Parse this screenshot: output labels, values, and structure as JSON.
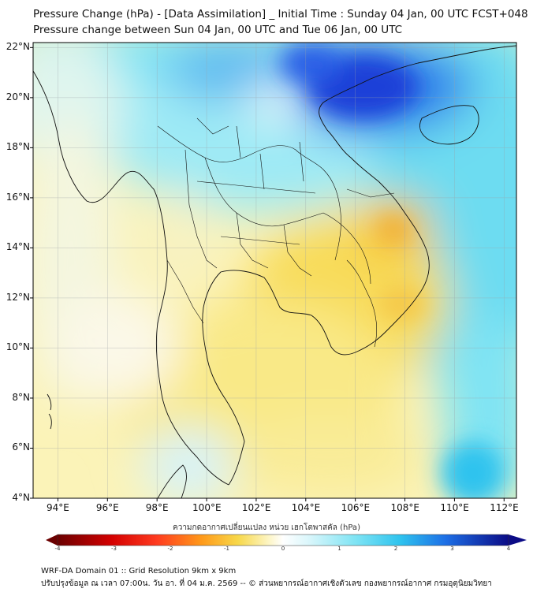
{
  "title_line1": "Pressure Change (hPa) - [Data Assimilation] _ Initial Time : Sunday 04 Jan, 00 UTC FCST+048",
  "title_line2": "Pressure change between Sun 04 Jan, 00 UTC and Tue 06 Jan, 00 UTC",
  "map": {
    "lat_labels": [
      "22°N",
      "20°N",
      "18°N",
      "16°N",
      "14°N",
      "12°N",
      "10°N",
      "8°N",
      "6°N",
      "4°N"
    ],
    "lon_labels": [
      "94°E",
      "96°E",
      "98°E",
      "100°E",
      "102°E",
      "104°E",
      "106°E",
      "108°E",
      "110°E",
      "112°E"
    ],
    "lat_values": [
      22,
      20,
      18,
      16,
      14,
      12,
      10,
      8,
      6,
      4
    ],
    "lon_values": [
      94,
      96,
      98,
      100,
      102,
      104,
      106,
      108,
      110,
      112
    ],
    "extent": {
      "lon_min": 93,
      "lon_max": 112.5,
      "lat_min": 4,
      "lat_max": 22.2
    },
    "gridlines": true
  },
  "colorbar": {
    "label": "ความกดอากาศเปลี่ยนแปลง หน่วย เฮกโตพาสคัล (hPa)",
    "ticks": [
      "-4",
      "-3",
      "-2",
      "-1",
      "0",
      "1",
      "2",
      "3",
      "4"
    ],
    "range": [
      -4,
      4
    ],
    "extend": "both",
    "colors": {
      "min": "#6b0000",
      "neg3": "#e00000",
      "neg2": "#ff8c1a",
      "neg1": "#f5e36b",
      "zero": "#ffffff",
      "pos1": "#a9ecf5",
      "pos2": "#3fd6f0",
      "pos3": "#1e6fe8",
      "max": "#0a0a7a"
    }
  },
  "footer_line1": "WRF-DA Domain 01 :: Grid Resolution 9km x 9km",
  "footer_line2": "ปรับปรุงข้อมูล ณ เวลา 07:00น. วัน อา. ที่ 04 ม.ค. 2569 -- © ส่วนพยากรณ์อากาศเชิงตัวเลข กองพยากรณ์อากาศ กรมอุตุนิยมวิทยา"
}
